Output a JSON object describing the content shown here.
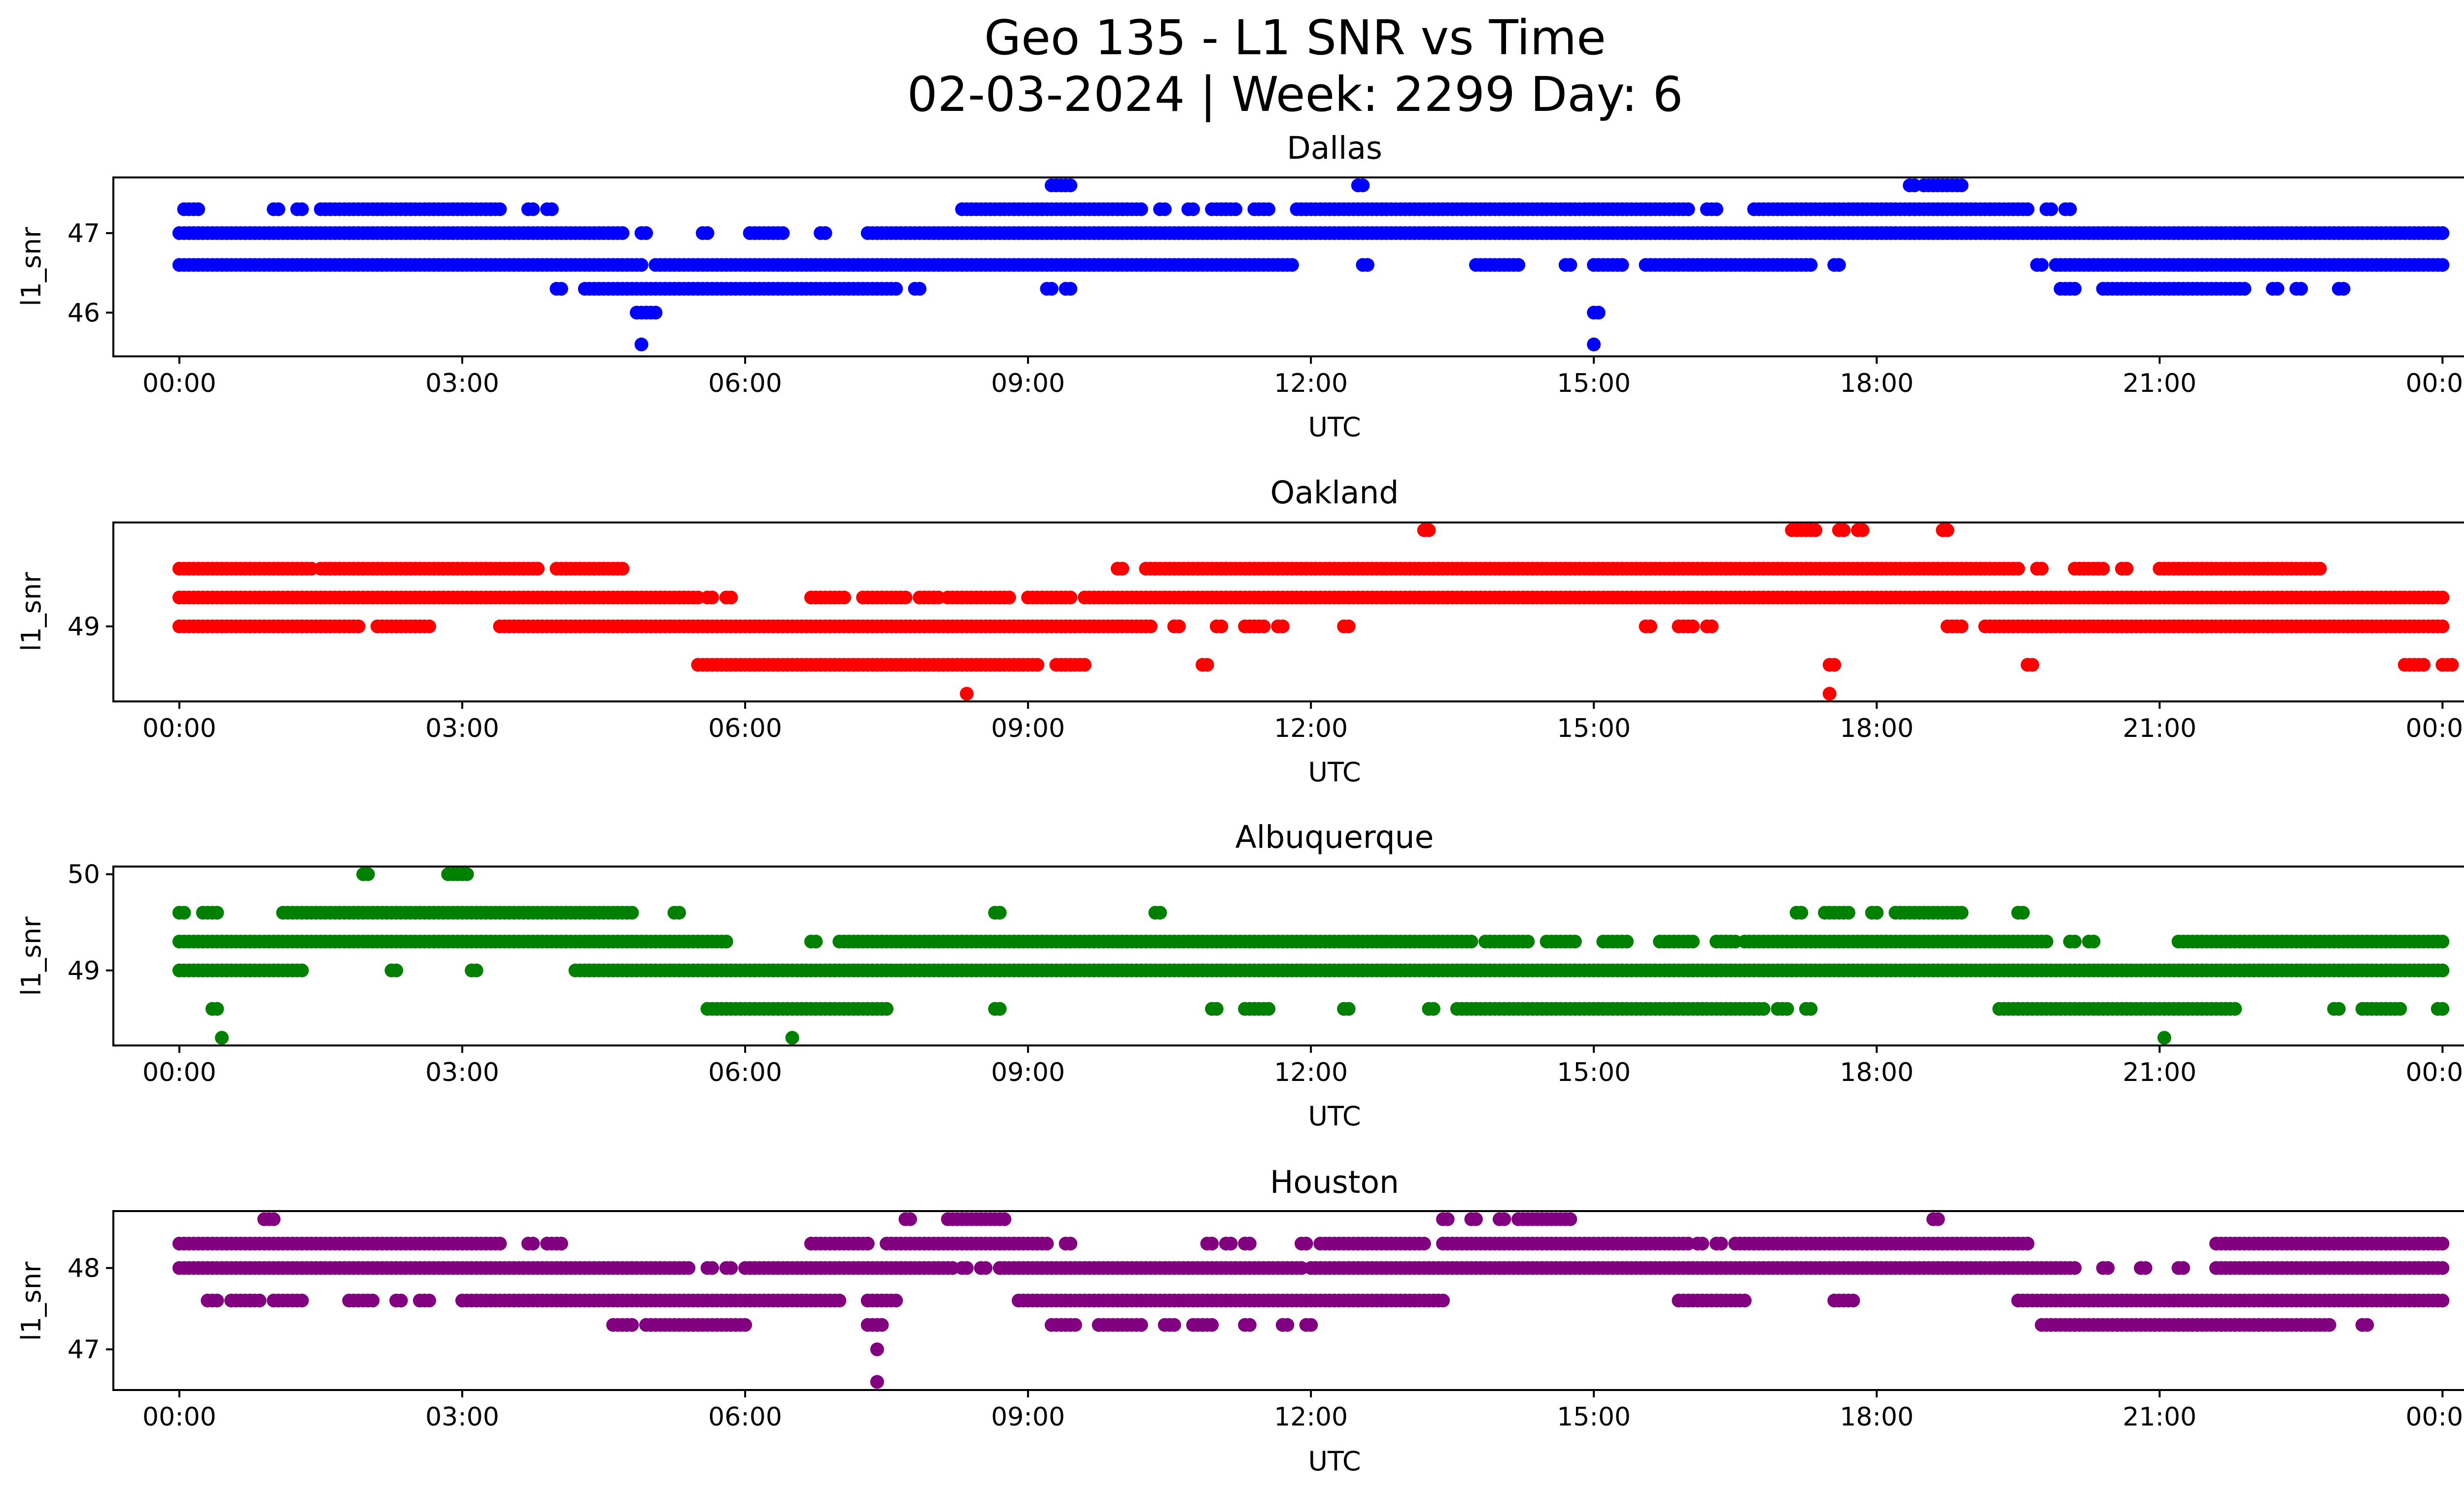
{
  "figure_title_line1": "Geo 135 - L1 SNR vs Time",
  "figure_title_line2": "02-03-2024 | Week: 2299 Day: 6",
  "chart_data": [
    {
      "type": "scatter",
      "title": "Dallas",
      "xlabel": "UTC",
      "ylabel": "l1_snr",
      "color": "#0000ff",
      "xlim": [
        -0.7,
        25.2
      ],
      "ylim": [
        45.45,
        47.7
      ],
      "xticks": [
        0,
        3,
        6,
        9,
        12,
        15,
        18,
        21,
        24
      ],
      "xtick_labels": [
        "00:00",
        "03:00",
        "06:00",
        "09:00",
        "12:00",
        "15:00",
        "18:00",
        "21:00",
        "00:00"
      ],
      "yticks": [
        46,
        47
      ],
      "ytick_labels": [
        "46",
        "47"
      ],
      "runs": [
        {
          "y": 47.0,
          "segments": [
            [
              0,
              4.7
            ],
            [
              4.9,
              4.95
            ],
            [
              5.55,
              5.6
            ],
            [
              6.05,
              6.4
            ],
            [
              6.8,
              6.85
            ],
            [
              7.3,
              24
            ]
          ]
        },
        {
          "y": 46.6,
          "segments": [
            [
              0,
              4.9
            ],
            [
              5.05,
              11.8
            ],
            [
              12.55,
              12.6
            ],
            [
              13.75,
              14.2
            ],
            [
              14.7,
              14.75
            ],
            [
              15.0,
              15.3
            ],
            [
              15.55,
              17.3
            ],
            [
              17.55,
              17.6
            ],
            [
              19.7,
              19.75
            ],
            [
              19.9,
              24
            ]
          ]
        },
        {
          "y": 47.3,
          "segments": [
            [
              0.05,
              0.2
            ],
            [
              1.0,
              1.05
            ],
            [
              1.25,
              1.3
            ],
            [
              1.5,
              3.4
            ],
            [
              3.7,
              3.75
            ],
            [
              3.9,
              3.95
            ],
            [
              8.3,
              10.2
            ],
            [
              10.4,
              10.45
            ],
            [
              10.7,
              10.75
            ],
            [
              10.95,
              11.2
            ],
            [
              11.4,
              11.55
            ],
            [
              11.85,
              16.0
            ],
            [
              16.2,
              16.3
            ],
            [
              16.7,
              19.6
            ],
            [
              19.8,
              19.85
            ],
            [
              20.0,
              20.05
            ]
          ]
        },
        {
          "y": 46.3,
          "segments": [
            [
              4.0,
              4.05
            ],
            [
              4.3,
              7.6
            ],
            [
              7.8,
              7.85
            ],
            [
              9.2,
              9.25
            ],
            [
              9.4,
              9.45
            ],
            [
              19.95,
              20.1
            ],
            [
              20.4,
              21.9
            ],
            [
              22.2,
              22.25
            ],
            [
              22.45,
              22.5
            ],
            [
              22.9,
              22.95
            ]
          ]
        },
        {
          "y": 46.0,
          "segments": [
            [
              4.85,
              5.05
            ],
            [
              15.0,
              15.05
            ]
          ]
        },
        {
          "y": 47.6,
          "segments": [
            [
              9.25,
              9.45
            ],
            [
              12.5,
              12.55
            ],
            [
              18.35,
              18.4
            ],
            [
              18.5,
              18.9
            ]
          ]
        }
      ],
      "points": [
        [
          4.9,
          45.6
        ],
        [
          15.0,
          45.6
        ]
      ]
    },
    {
      "type": "scatter",
      "title": "Oakland",
      "xlabel": "UTC",
      "ylabel": "l1_snr",
      "color": "#ff0000",
      "xlim": [
        -0.7,
        25.2
      ],
      "ylim": [
        48.22,
        50.08
      ],
      "xticks": [
        0,
        3,
        6,
        9,
        12,
        15,
        18,
        21,
        24
      ],
      "xtick_labels": [
        "00:00",
        "03:00",
        "06:00",
        "09:00",
        "12:00",
        "15:00",
        "18:00",
        "21:00",
        "00:00"
      ],
      "yticks": [
        49
      ],
      "ytick_labels": [
        "49"
      ],
      "runs": [
        {
          "y": 49.3,
          "segments": [
            [
              0,
              5.5
            ],
            [
              5.6,
              5.65
            ],
            [
              5.8,
              5.85
            ],
            [
              6.7,
              7.05
            ],
            [
              7.25,
              7.7
            ],
            [
              7.85,
              8.05
            ],
            [
              8.15,
              8.8
            ],
            [
              9.0,
              9.45
            ],
            [
              9.6,
              24
            ]
          ]
        },
        {
          "y": 49.0,
          "segments": [
            [
              0,
              1.9
            ],
            [
              2.1,
              2.65
            ],
            [
              3.4,
              10.3
            ],
            [
              10.55,
              10.6
            ],
            [
              11.0,
              11.05
            ],
            [
              11.3,
              11.5
            ],
            [
              11.65,
              11.7
            ],
            [
              12.35,
              12.4
            ],
            [
              15.55,
              15.6
            ],
            [
              15.9,
              16.05
            ],
            [
              16.2,
              16.25
            ],
            [
              18.75,
              18.9
            ],
            [
              19.15,
              24
            ]
          ]
        },
        {
          "y": 49.6,
          "segments": [
            [
              0,
              1.4
            ],
            [
              1.5,
              3.8
            ],
            [
              4.0,
              4.7
            ],
            [
              9.95,
              10.0
            ],
            [
              10.25,
              19.5
            ],
            [
              19.7,
              19.75
            ],
            [
              20.1,
              20.4
            ],
            [
              20.6,
              20.65
            ],
            [
              21.0,
              22.7
            ]
          ]
        },
        {
          "y": 48.6,
          "segments": [
            [
              5.5,
              9.1
            ],
            [
              9.3,
              9.6
            ],
            [
              10.85,
              10.9
            ],
            [
              17.5,
              17.55
            ],
            [
              19.6,
              19.65
            ],
            [
              23.6,
              23.8
            ],
            [
              24.0,
              24.1
            ]
          ]
        },
        {
          "y": 50.0,
          "segments": [
            [
              13.2,
              13.25
            ],
            [
              17.1,
              17.35
            ],
            [
              17.6,
              17.65
            ],
            [
              17.8,
              17.85
            ],
            [
              18.7,
              18.75
            ]
          ]
        }
      ],
      "points": [
        [
          8.35,
          48.3
        ],
        [
          17.5,
          48.3
        ]
      ]
    },
    {
      "type": "scatter",
      "title": "Albuquerque",
      "xlabel": "UTC",
      "ylabel": "l1_snr",
      "color": "#008000",
      "xlim": [
        -0.7,
        25.2
      ],
      "ylim": [
        48.22,
        50.08
      ],
      "xticks": [
        0,
        3,
        6,
        9,
        12,
        15,
        18,
        21,
        24
      ],
      "xtick_labels": [
        "00:00",
        "03:00",
        "06:00",
        "09:00",
        "12:00",
        "15:00",
        "18:00",
        "21:00",
        "00:00"
      ],
      "yticks": [
        50,
        49
      ],
      "ytick_labels": [
        "50",
        "49"
      ],
      "runs": [
        {
          "y": 49.3,
          "segments": [
            [
              0,
              5.8
            ],
            [
              6.7,
              6.75
            ],
            [
              7.0,
              13.7
            ],
            [
              13.85,
              14.3
            ],
            [
              14.5,
              14.8
            ],
            [
              15.1,
              15.35
            ],
            [
              15.7,
              16.05
            ],
            [
              16.3,
              16.5
            ],
            [
              16.6,
              19.8
            ],
            [
              20.05,
              20.1
            ],
            [
              20.25,
              20.3
            ],
            [
              21.2,
              24
            ]
          ]
        },
        {
          "y": 49.0,
          "segments": [
            [
              0,
              1.3
            ],
            [
              2.25,
              2.3
            ],
            [
              3.1,
              3.15
            ],
            [
              4.2,
              24
            ]
          ]
        },
        {
          "y": 49.6,
          "segments": [
            [
              0,
              0.05
            ],
            [
              0.25,
              0.4
            ],
            [
              1.1,
              4.8
            ],
            [
              5.25,
              5.3
            ],
            [
              8.65,
              8.7
            ],
            [
              10.35,
              10.4
            ],
            [
              17.15,
              17.2
            ],
            [
              17.45,
              17.7
            ],
            [
              17.95,
              18.0
            ],
            [
              18.2,
              18.9
            ],
            [
              19.5,
              19.55
            ]
          ]
        },
        {
          "y": 48.6,
          "segments": [
            [
              0.35,
              0.4
            ],
            [
              5.6,
              7.5
            ],
            [
              8.65,
              8.7
            ],
            [
              10.95,
              11.0
            ],
            [
              11.3,
              11.55
            ],
            [
              12.35,
              12.4
            ],
            [
              13.25,
              13.3
            ],
            [
              13.55,
              16.8
            ],
            [
              16.95,
              17.05
            ],
            [
              17.25,
              17.3
            ],
            [
              19.3,
              21.8
            ],
            [
              22.85,
              22.9
            ],
            [
              23.15,
              23.55
            ],
            [
              23.95,
              24.0
            ]
          ]
        },
        {
          "y": 50.0,
          "segments": [
            [
              1.95,
              2.0
            ],
            [
              2.85,
              3.05
            ]
          ]
        }
      ],
      "points": [
        [
          0.45,
          48.3
        ],
        [
          6.5,
          48.3
        ],
        [
          21.05,
          48.3
        ]
      ]
    },
    {
      "type": "scatter",
      "title": "Houston",
      "xlabel": "UTC",
      "ylabel": "l1_snr",
      "color": "#800080",
      "xlim": [
        -0.7,
        25.2
      ],
      "ylim": [
        46.5,
        48.7
      ],
      "xticks": [
        0,
        3,
        6,
        9,
        12,
        15,
        18,
        21,
        24
      ],
      "xtick_labels": [
        "00:00",
        "03:00",
        "06:00",
        "09:00",
        "12:00",
        "15:00",
        "18:00",
        "21:00",
        "00:00"
      ],
      "yticks": [
        48,
        47
      ],
      "ytick_labels": [
        "48",
        "47"
      ],
      "runs": [
        {
          "y": 48.0,
          "segments": [
            [
              0,
              5.4
            ],
            [
              5.6,
              5.65
            ],
            [
              5.8,
              5.85
            ],
            [
              6.0,
              8.2
            ],
            [
              8.3,
              8.35
            ],
            [
              8.5,
              8.55
            ],
            [
              8.7,
              11.9
            ],
            [
              12.0,
              20.1
            ],
            [
              20.4,
              20.45
            ],
            [
              20.8,
              20.85
            ],
            [
              21.2,
              21.25
            ],
            [
              21.6,
              24
            ]
          ]
        },
        {
          "y": 48.3,
          "segments": [
            [
              0,
              3.4
            ],
            [
              3.7,
              3.75
            ],
            [
              3.9,
              4.05
            ],
            [
              6.7,
              7.3
            ],
            [
              7.5,
              9.2
            ],
            [
              9.4,
              9.45
            ],
            [
              10.9,
              10.95
            ],
            [
              11.1,
              11.15
            ],
            [
              11.3,
              11.35
            ],
            [
              11.9,
              11.95
            ],
            [
              12.1,
              13.2
            ],
            [
              13.4,
              16.0
            ],
            [
              16.1,
              16.15
            ],
            [
              16.3,
              16.35
            ],
            [
              16.5,
              19.6
            ],
            [
              21.6,
              24
            ]
          ]
        },
        {
          "y": 47.6,
          "segments": [
            [
              0.3,
              0.4
            ],
            [
              0.55,
              0.85
            ],
            [
              1.0,
              1.3
            ],
            [
              1.8,
              2.05
            ],
            [
              2.3,
              2.35
            ],
            [
              2.55,
              2.65
            ],
            [
              3.0,
              7.0
            ],
            [
              7.3,
              7.6
            ],
            [
              8.9,
              13.4
            ],
            [
              15.9,
              16.6
            ],
            [
              17.55,
              17.75
            ],
            [
              19.5,
              24
            ]
          ]
        },
        {
          "y": 47.3,
          "segments": [
            [
              4.6,
              4.8
            ],
            [
              4.95,
              6.0
            ],
            [
              7.3,
              7.45
            ],
            [
              9.25,
              9.5
            ],
            [
              9.75,
              10.2
            ],
            [
              10.45,
              10.55
            ],
            [
              10.75,
              10.95
            ],
            [
              11.3,
              11.35
            ],
            [
              11.7,
              11.75
            ],
            [
              11.95,
              12.0
            ],
            [
              19.75,
              22.8
            ],
            [
              23.15,
              23.2
            ]
          ]
        },
        {
          "y": 48.6,
          "segments": [
            [
              0.9,
              1.0
            ],
            [
              7.7,
              7.75
            ],
            [
              8.15,
              8.75
            ],
            [
              13.4,
              13.45
            ],
            [
              13.7,
              13.75
            ],
            [
              14.0,
              14.05
            ],
            [
              14.2,
              14.75
            ],
            [
              18.6,
              18.65
            ]
          ]
        }
      ],
      "points": [
        [
          7.4,
          47.0
        ],
        [
          7.4,
          46.6
        ]
      ]
    }
  ]
}
